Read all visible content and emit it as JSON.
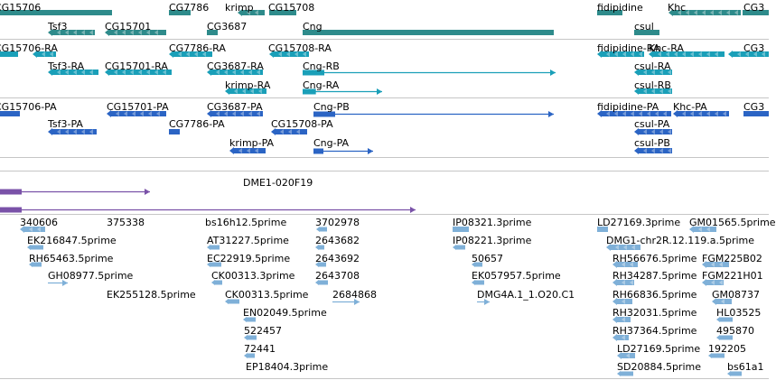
{
  "colors": {
    "gene": "#2e8b8b",
    "rna": "#1a9fb8",
    "protein": "#2b64c4",
    "clone": "#7a52a8",
    "est": "#7fb0d8",
    "separator": "#c6c6c6"
  },
  "tracks": [
    {
      "id": "gene",
      "color_key": "gene",
      "labels": [
        "CG15706",
        "CG7786",
        "krimp",
        "CG15708",
        "fidipidine",
        "Khc",
        "CG3",
        "Tsf3",
        "CG15701",
        "CG3687",
        "Cng",
        "csul"
      ]
    },
    {
      "id": "rna",
      "color_key": "rna",
      "labels": [
        "CG15706-RA",
        "CG7786-RA",
        "CG15708-RA",
        "fidipidine-RA",
        "Khc-RA",
        "CG3",
        "Tsf3-RA",
        "CG15701-RA",
        "CG3687-RA",
        "Cng-RB",
        "csul-RA",
        "krimp-RA",
        "Cng-RA",
        "csul-RB"
      ]
    },
    {
      "id": "protein",
      "color_key": "protein",
      "labels": [
        "CG15706-PA",
        "CG15701-PA",
        "CG3687-PA",
        "Cng-PB",
        "fidipidine-PA",
        "Khc-PA",
        "CG3",
        "Tsf3-PA",
        "CG7786-PA",
        "CG15708-PA",
        "csul-PA",
        "krimp-PA",
        "Cng-PA",
        "csul-PB"
      ]
    },
    {
      "id": "clone",
      "color_key": "clone",
      "labels": [
        "DME1-020F19"
      ]
    },
    {
      "id": "est",
      "color_key": "est",
      "labels": [
        "340606",
        "375338",
        "bs16h12.5prime",
        "3702978",
        "IP08321.3prime",
        "LD27169.3prime",
        "GM01565.5prime",
        "EK216847.5prime",
        "AT31227.5prime",
        "2643682",
        "IP08221.3prime",
        "DMG1-chr2R.12.119.a.5prime",
        "RH65463.5prime",
        "EC22919.5prime",
        "2643692",
        "50657",
        "RH56676.5prime",
        "FGM225B02",
        "GH08977.5prime",
        "CK00313.3prime",
        "2643708",
        "EK057957.5prime",
        "RH34287.5prime",
        "FGM221H01",
        "EK255128.5prime",
        "CK00313.5prime",
        "2684868",
        "DMG4A.1_1.O20.C1",
        "RH66836.5prime",
        "GM08737",
        "EN02049.5prime",
        "RH32031.5prime",
        "HL03525",
        "522457",
        "RH37364.5prime",
        "495870",
        "72441",
        "LD27169.5prime",
        "192205",
        "EP18404.3prime",
        "SD20884.5prime",
        "bs61a1"
      ]
    }
  ]
}
